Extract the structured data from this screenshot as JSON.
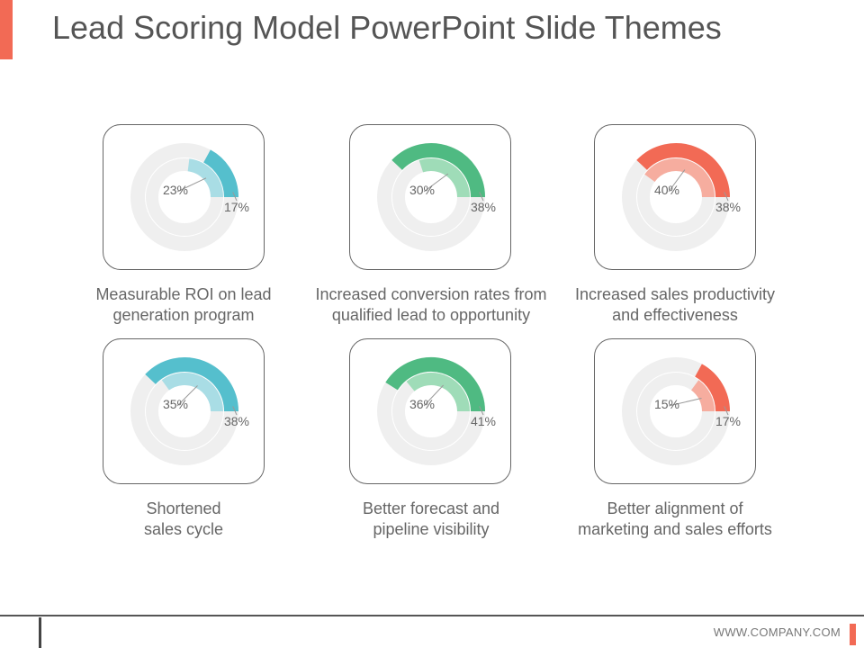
{
  "slide": {
    "title": "Lead Scoring Model PowerPoint Slide Themes",
    "footer_url": "WWW.COMPANY.COM",
    "accent_color": "#f26a55"
  },
  "chart_data": [
    {
      "type": "radial-gauge",
      "caption_lines": [
        "Measurable ROI on lead",
        "generation program"
      ],
      "outer": {
        "label": "17%",
        "value": 17
      },
      "inner": {
        "label": "23%",
        "value": 23
      },
      "colors": {
        "outer": "#55bfcd",
        "inner": "#a9dde5"
      }
    },
    {
      "type": "radial-gauge",
      "caption_lines": [
        "Increased conversion rates from",
        "qualified lead to opportunity"
      ],
      "outer": {
        "label": "38%",
        "value": 38
      },
      "inner": {
        "label": "30%",
        "value": 30
      },
      "colors": {
        "outer": "#4fba82",
        "inner": "#9fdcb8"
      }
    },
    {
      "type": "radial-gauge",
      "caption_lines": [
        "Increased sales productivity",
        "and effectiveness"
      ],
      "outer": {
        "label": "38%",
        "value": 38
      },
      "inner": {
        "label": "40%",
        "value": 40
      },
      "colors": {
        "outer": "#f26a55",
        "inner": "#f6ad9f"
      }
    },
    {
      "type": "radial-gauge",
      "caption_lines": [
        "Shortened",
        "sales cycle"
      ],
      "outer": {
        "label": "38%",
        "value": 38
      },
      "inner": {
        "label": "35%",
        "value": 35
      },
      "colors": {
        "outer": "#55bfcd",
        "inner": "#a9dde5"
      }
    },
    {
      "type": "radial-gauge",
      "caption_lines": [
        "Better forecast and",
        "pipeline visibility"
      ],
      "outer": {
        "label": "41%",
        "value": 41
      },
      "inner": {
        "label": "36%",
        "value": 36
      },
      "colors": {
        "outer": "#4fba82",
        "inner": "#9fdcb8"
      }
    },
    {
      "type": "radial-gauge",
      "caption_lines": [
        "Better alignment of",
        "marketing and sales efforts"
      ],
      "outer": {
        "label": "17%",
        "value": 17
      },
      "inner": {
        "label": "15%",
        "value": 15
      },
      "colors": {
        "outer": "#f26a55",
        "inner": "#f6ad9f"
      }
    }
  ]
}
